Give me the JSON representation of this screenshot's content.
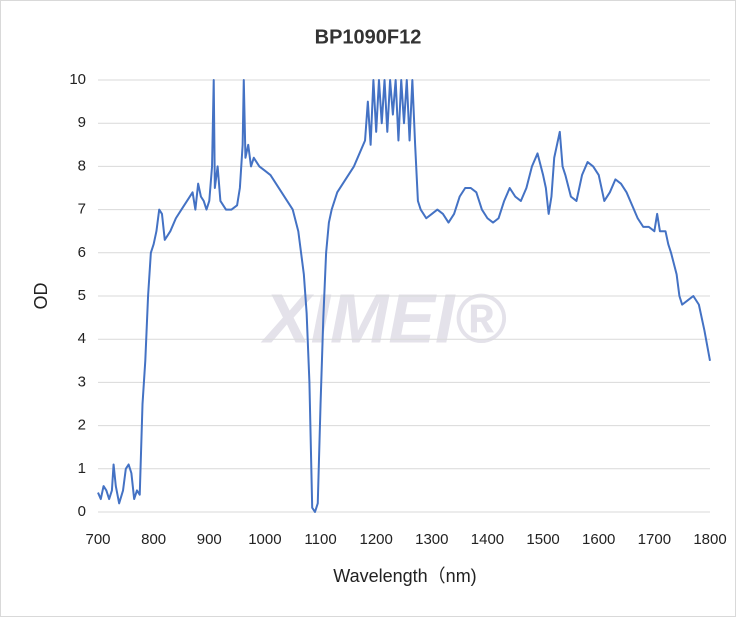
{
  "chart_data": {
    "type": "line",
    "title": "BP1090F12",
    "x_label": "Wavelength（nm)",
    "y_label": "OD",
    "watermark": "XIMEI®",
    "x": [
      700,
      705,
      710,
      715,
      720,
      725,
      728,
      732,
      738,
      745,
      750,
      755,
      760,
      765,
      770,
      775,
      780,
      785,
      790,
      795,
      800,
      805,
      810,
      815,
      820,
      825,
      830,
      840,
      850,
      860,
      870,
      875,
      880,
      885,
      890,
      895,
      900,
      905,
      908,
      910,
      915,
      920,
      930,
      940,
      950,
      955,
      960,
      962,
      965,
      970,
      975,
      980,
      990,
      1000,
      1010,
      1020,
      1030,
      1040,
      1050,
      1060,
      1070,
      1075,
      1080,
      1085,
      1090,
      1095,
      1100,
      1105,
      1110,
      1115,
      1120,
      1130,
      1140,
      1150,
      1160,
      1170,
      1180,
      1185,
      1190,
      1195,
      1200,
      1205,
      1210,
      1215,
      1220,
      1225,
      1230,
      1235,
      1240,
      1245,
      1250,
      1255,
      1260,
      1265,
      1270,
      1275,
      1280,
      1290,
      1300,
      1310,
      1320,
      1330,
      1340,
      1350,
      1360,
      1370,
      1380,
      1390,
      1400,
      1410,
      1420,
      1430,
      1440,
      1450,
      1460,
      1470,
      1480,
      1490,
      1500,
      1505,
      1510,
      1515,
      1520,
      1530,
      1535,
      1540,
      1550,
      1560,
      1570,
      1580,
      1590,
      1600,
      1610,
      1620,
      1630,
      1640,
      1650,
      1660,
      1670,
      1680,
      1690,
      1700,
      1705,
      1710,
      1720,
      1725,
      1730,
      1740,
      1745,
      1750,
      1760,
      1770,
      1780,
      1790,
      1800
    ],
    "series": [
      {
        "name": "OD",
        "color": "#4472c4",
        "values": [
          0.45,
          0.3,
          0.6,
          0.5,
          0.3,
          0.5,
          1.1,
          0.6,
          0.2,
          0.5,
          1.0,
          1.1,
          0.9,
          0.3,
          0.5,
          0.4,
          2.5,
          3.5,
          5.0,
          6.0,
          6.2,
          6.5,
          7.0,
          6.9,
          6.3,
          6.4,
          6.5,
          6.8,
          7.0,
          7.2,
          7.4,
          7.0,
          7.6,
          7.3,
          7.2,
          7.0,
          7.2,
          8.0,
          10,
          7.5,
          8.0,
          7.2,
          7.0,
          7.0,
          7.1,
          7.5,
          8.5,
          10,
          8.2,
          8.5,
          8.0,
          8.2,
          8.0,
          7.9,
          7.8,
          7.6,
          7.4,
          7.2,
          7.0,
          6.5,
          5.5,
          4.6,
          3.0,
          0.1,
          0.0,
          0.2,
          2.5,
          4.5,
          6.0,
          6.7,
          7.0,
          7.4,
          7.6,
          7.8,
          8.0,
          8.3,
          8.6,
          9.5,
          8.5,
          10,
          8.8,
          10,
          9.0,
          10,
          8.8,
          10,
          9.2,
          10,
          8.6,
          10,
          9.0,
          10,
          8.6,
          10,
          8.5,
          7.2,
          7.0,
          6.8,
          6.9,
          7.0,
          6.9,
          6.7,
          6.9,
          7.3,
          7.5,
          7.5,
          7.4,
          7.0,
          6.8,
          6.7,
          6.8,
          7.2,
          7.5,
          7.3,
          7.2,
          7.5,
          8.0,
          8.3,
          7.8,
          7.5,
          6.9,
          7.3,
          8.2,
          8.8,
          8.0,
          7.8,
          7.3,
          7.2,
          7.8,
          8.1,
          8.0,
          7.8,
          7.2,
          7.4,
          7.7,
          7.6,
          7.4,
          7.1,
          6.8,
          6.6,
          6.6,
          6.5,
          6.9,
          6.5,
          6.5,
          6.2,
          6.0,
          5.5,
          5.0,
          4.8,
          4.9,
          5.0,
          4.8,
          4.2,
          3.5
        ]
      }
    ],
    "xlim": [
      700,
      1800
    ],
    "xticks": [
      700,
      800,
      900,
      1000,
      1100,
      1200,
      1300,
      1400,
      1500,
      1600,
      1700,
      1800
    ],
    "ylim": [
      0,
      10
    ],
    "yticks": [
      0,
      1,
      2,
      3,
      4,
      5,
      6,
      7,
      8,
      9,
      10
    ],
    "grid": true
  }
}
